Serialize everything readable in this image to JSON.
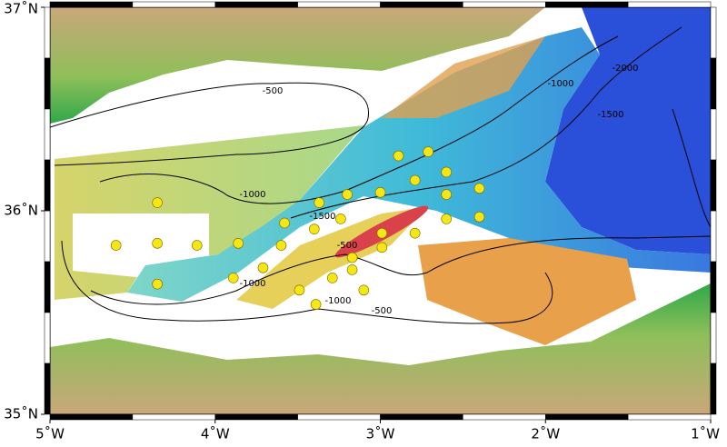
{
  "chart_data": {
    "type": "map",
    "xlim": [
      -5,
      -1
    ],
    "ylim": [
      35,
      37
    ],
    "xticks": [
      {
        "value": -5,
        "label": "5˚W"
      },
      {
        "value": -4,
        "label": "4˚W"
      },
      {
        "value": -3,
        "label": "3˚W"
      },
      {
        "value": -2,
        "label": "2˚W"
      },
      {
        "value": -1,
        "label": "1˚W"
      }
    ],
    "yticks": [
      {
        "value": 35,
        "label": "35˚N"
      },
      {
        "value": 36,
        "label": "36˚N"
      },
      {
        "value": 37,
        "label": "37˚N"
      }
    ],
    "contour_labels": [
      "-500",
      "-1000",
      "-1000",
      "-1500",
      "-1500",
      "-2000",
      "-500",
      "-1000",
      "-1000",
      "-500"
    ],
    "stations": {
      "color": "#f5e614",
      "x": [
        -2.89,
        -2.71,
        -2.6,
        -2.79,
        -2.4,
        -2.6,
        -3.0,
        -3.2,
        -3.37,
        -4.35,
        -3.24,
        -3.4,
        -3.58,
        -2.4,
        -2.6,
        -2.79,
        -2.99,
        -4.6,
        -4.35,
        -4.11,
        -3.86,
        -3.6,
        -2.99,
        -3.17,
        -3.71,
        -3.89,
        -4.35,
        -3.17,
        -3.29,
        -3.49,
        -3.1,
        -3.39
      ],
      "y": [
        36.27,
        36.29,
        36.19,
        36.15,
        36.11,
        36.08,
        36.09,
        36.08,
        36.04,
        36.04,
        35.96,
        35.91,
        35.94,
        35.97,
        35.96,
        35.89,
        35.89,
        35.83,
        35.84,
        35.83,
        35.84,
        35.83,
        35.82,
        35.77,
        35.72,
        35.67,
        35.64,
        35.71,
        35.67,
        35.61,
        35.61,
        35.54
      ]
    }
  }
}
